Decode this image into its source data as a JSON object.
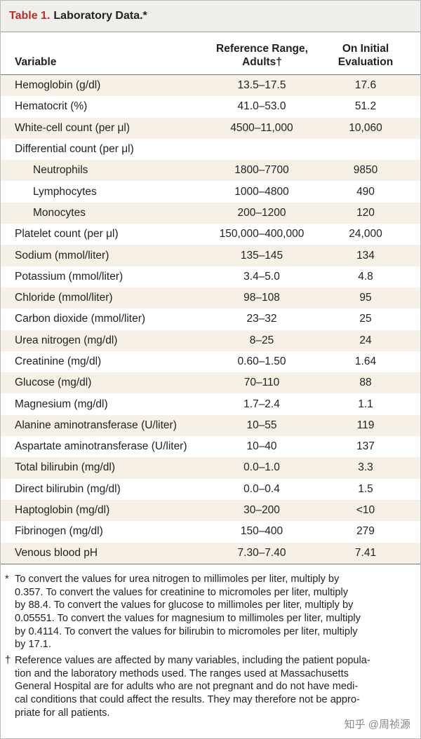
{
  "header": {
    "label": "Table 1.",
    "title": "Laboratory Data.*"
  },
  "table": {
    "columns": [
      "Variable",
      "Reference Range, Adults†",
      "On Initial Evaluation"
    ],
    "rows": [
      {
        "variable": "Hemoglobin (g/dl)",
        "reference": "13.5–17.5",
        "value": "17.6"
      },
      {
        "variable": "Hematocrit (%)",
        "reference": "41.0–53.0",
        "value": "51.2"
      },
      {
        "variable": "White-cell count (per μl)",
        "reference": "4500–11,000",
        "value": "10,060"
      },
      {
        "variable": "Differential count (per μl)",
        "reference": null,
        "value": null
      },
      {
        "variable": "Neutrophils",
        "reference": "1800–7700",
        "value": "9850",
        "indent": true
      },
      {
        "variable": "Lymphocytes",
        "reference": "1000–4800",
        "value": "490",
        "indent": true
      },
      {
        "variable": "Monocytes",
        "reference": "200–1200",
        "value": "120",
        "indent": true
      },
      {
        "variable": "Platelet count (per μl)",
        "reference": "150,000–400,000",
        "value": "24,000"
      },
      {
        "variable": "Sodium (mmol/liter)",
        "reference": "135–145",
        "value": "134"
      },
      {
        "variable": "Potassium (mmol/liter)",
        "reference": "3.4–5.0",
        "value": "4.8"
      },
      {
        "variable": "Chloride (mmol/liter)",
        "reference": "98–108",
        "value": "95"
      },
      {
        "variable": "Carbon dioxide (mmol/liter)",
        "reference": "23–32",
        "value": "25"
      },
      {
        "variable": "Urea nitrogen (mg/dl)",
        "reference": "8–25",
        "value": "24"
      },
      {
        "variable": "Creatinine (mg/dl)",
        "reference": "0.60–1.50",
        "value": "1.64"
      },
      {
        "variable": "Glucose (mg/dl)",
        "reference": "70–110",
        "value": "88"
      },
      {
        "variable": "Magnesium (mg/dl)",
        "reference": "1.7–2.4",
        "value": "1.1"
      },
      {
        "variable": "Alanine aminotransferase (U/liter)",
        "reference": "10–55",
        "value": "119"
      },
      {
        "variable": "Aspartate aminotransferase (U/liter)",
        "reference": "10–40",
        "value": "137"
      },
      {
        "variable": "Total bilirubin (mg/dl)",
        "reference": "0.0–1.0",
        "value": "3.3"
      },
      {
        "variable": "Direct bilirubin (mg/dl)",
        "reference": "0.0–0.4",
        "value": "1.5"
      },
      {
        "variable": "Haptoglobin (mg/dl)",
        "reference": "30–200",
        "value": "<10"
      },
      {
        "variable": "Fibrinogen (mg/dl)",
        "reference": "150–400",
        "value": "279"
      },
      {
        "variable": "Venous blood pH",
        "reference": "7.30–7.40",
        "value": "7.41"
      }
    ]
  },
  "footnotes": [
    {
      "symbol": "*",
      "lines": [
        "To convert the values for urea nitrogen to millimoles per liter, multiply by",
        "0.357. To convert the values for creatinine to micromoles per liter, multiply",
        "by 88.4. To convert the values for glucose to millimoles per liter, multiply by",
        "0.05551. To convert the values for magnesium to millimoles per liter, multiply",
        "by 0.4114. To convert the values for bilirubin to micromoles per liter, multiply",
        "by 17.1."
      ]
    },
    {
      "symbol": "†",
      "lines": [
        "Reference values are affected by many variables, including the patient popula-",
        "tion and the laboratory methods used. The ranges used at Massachusetts",
        "General Hospital are for adults who are not pregnant and do not have medi-",
        "cal conditions that could affect the results. They may therefore not be appro-",
        "priate for all patients."
      ]
    }
  ],
  "watermark": "知乎 @周祯源"
}
